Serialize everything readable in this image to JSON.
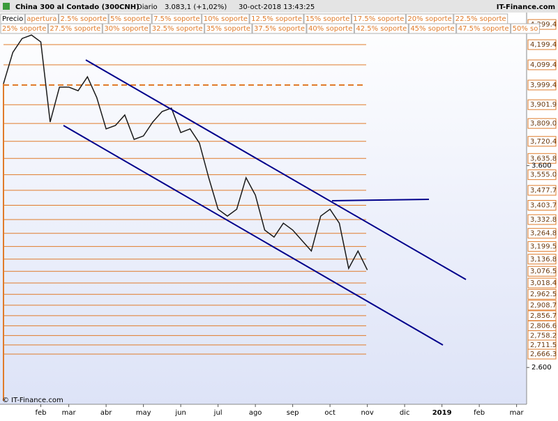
{
  "chart_data": {
    "type": "line",
    "title": "China 300 al Contado (300CNH)",
    "period": "Diario",
    "last_price": "3.083,1 (+1,02%)",
    "timestamp": "30-oct-2018 13:43:25",
    "brand": "IT-Finance.com",
    "copyright": "© IT-Finance.com",
    "legend_rows": [
      [
        "Precio",
        "apertura",
        "2.5% soporte",
        "5% soporte",
        "7.5% soporte",
        "10% soporte",
        "12.5% soporte",
        "15% soporte",
        "17.5% soporte",
        "20% soporte",
        "22.5% soporte"
      ],
      [
        "25% soporte",
        "27.5% soporte",
        "30% soporte",
        "32.5% soporte",
        "35% soporte",
        "37.5% soporte",
        "40% soporte",
        "42.5% soporte",
        "45% soporte",
        "47.5% soporte",
        "50% so"
      ]
    ],
    "categories": [
      null,
      null,
      null,
      null,
      "feb",
      null,
      null,
      "mar",
      null,
      null,
      null,
      "abr",
      null,
      null,
      null,
      "may",
      null,
      null,
      null,
      "jun",
      null,
      null,
      null,
      "jul",
      null,
      null,
      null,
      "ago",
      null,
      null,
      null,
      "sep",
      null,
      null,
      null,
      "oct",
      null,
      null,
      null,
      "nov",
      null,
      null,
      null,
      "dic",
      null,
      null,
      null,
      "2019",
      null,
      null,
      null,
      "feb",
      null,
      null,
      null,
      "mar"
    ],
    "series": [
      {
        "name": "Precio",
        "color": "#1a1a1a",
        "values": [
          4006,
          4161,
          4230,
          4247,
          4213,
          3816,
          3989,
          3989,
          3971,
          4040,
          3937,
          3782,
          3799,
          3851,
          3730,
          3747,
          3816,
          3868,
          3885,
          3764,
          3782,
          3712,
          3540,
          3384,
          3350,
          3384,
          3540,
          3454,
          3281,
          3246,
          3315,
          3281,
          3229,
          3177,
          3350,
          3384,
          3315,
          3091,
          3177,
          3083.1,
          null,
          null,
          null,
          null,
          null,
          null,
          null,
          null,
          null,
          null,
          null,
          null,
          null,
          null,
          null,
          null
        ]
      }
    ],
    "level_color": "#e07b2a",
    "levels": [
      {
        "value": 4299.4,
        "label": "4,299.4"
      },
      {
        "value": 4199.4,
        "label": "4,199.4"
      },
      {
        "value": 4099.4,
        "label": "4,099.4"
      },
      {
        "value": 3999.4,
        "label": "3,999.4",
        "style": "dashed"
      },
      {
        "value": 3901.9,
        "label": "3,901.9"
      },
      {
        "value": 3809.0,
        "label": "3,809.0"
      },
      {
        "value": 3720.4,
        "label": "3,720.4"
      },
      {
        "value": 3635.8,
        "label": "3,635.8"
      },
      {
        "value": 3555.0,
        "label": "3,555.0"
      },
      {
        "value": 3477.7,
        "label": "3,477.7"
      },
      {
        "value": 3403.7,
        "label": "3,403.7"
      },
      {
        "value": 3332.8,
        "label": "3,332.8"
      },
      {
        "value": 3264.8,
        "label": "3,264.8"
      },
      {
        "value": 3199.5,
        "label": "3,199.5"
      },
      {
        "value": 3136.8,
        "label": "3,136.8"
      },
      {
        "value": 3076.5,
        "label": "3,076.5"
      },
      {
        "value": 3018.4,
        "label": "3,018.4"
      },
      {
        "value": 2962.5,
        "label": "2,962.5"
      },
      {
        "value": 2908.7,
        "label": "2,908.7"
      },
      {
        "value": 2856.7,
        "label": "2,856.7"
      },
      {
        "value": 2806.6,
        "label": "2,806.6"
      },
      {
        "value": 2758.2,
        "label": "2,758.2"
      },
      {
        "value": 2711.5,
        "label": "2,711.5"
      },
      {
        "value": 2666.3,
        "label": "2,666.3"
      }
    ],
    "ylim": [
      2435,
      4317
    ],
    "yticks": [
      {
        "value": 2600,
        "label": "2.600"
      },
      {
        "value": 3600,
        "label": "3.600"
      }
    ],
    "bold_category": "2019"
  }
}
